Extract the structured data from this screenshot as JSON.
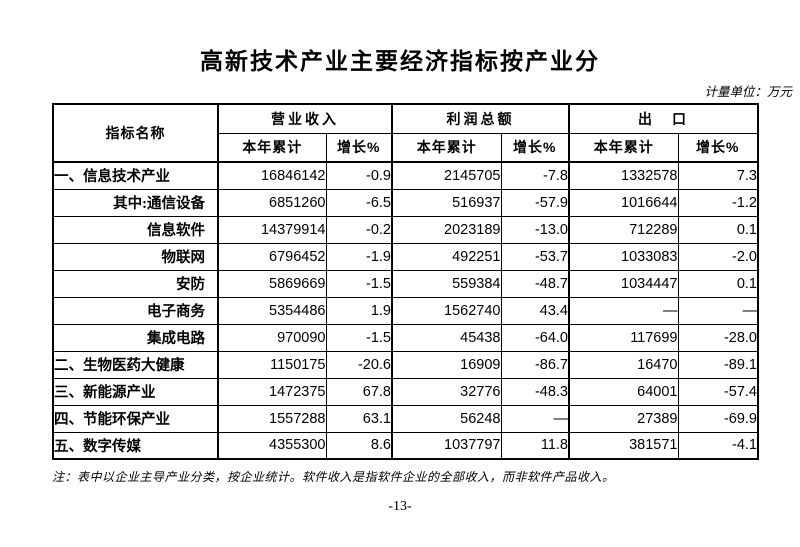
{
  "page": {
    "title": "高新技术产业主要经济指标按产业分",
    "unit_note": "计量单位：万元",
    "footnote": "注：表中以企业主导产业分类，按企业统计。软件收入是指软件企业的全部收入，而非软件产品收入。",
    "page_number": "-13-"
  },
  "table": {
    "header": {
      "indicator": "指标名称",
      "groups": [
        {
          "label": "营业收入",
          "sub": [
            "本年累计",
            "增长%"
          ]
        },
        {
          "label": "利润总额",
          "sub": [
            "本年累计",
            "增长%"
          ]
        },
        {
          "label": "出　口",
          "sub": [
            "本年累计",
            "增长%"
          ]
        }
      ]
    },
    "rows": [
      {
        "name": "一、信息技术产业",
        "indent": false,
        "values": [
          "16846142",
          "-0.9",
          "2145705",
          "-7.8",
          "1332578",
          "7.3"
        ]
      },
      {
        "name": "其中:通信设备",
        "indent": true,
        "values": [
          "6851260",
          "-6.5",
          "516937",
          "-57.9",
          "1016644",
          "-1.2"
        ]
      },
      {
        "name": "信息软件",
        "indent": true,
        "values": [
          "14379914",
          "-0.2",
          "2023189",
          "-13.0",
          "712289",
          "0.1"
        ]
      },
      {
        "name": "物联网",
        "indent": true,
        "values": [
          "6796452",
          "-1.9",
          "492251",
          "-53.7",
          "1033083",
          "-2.0"
        ]
      },
      {
        "name": "安防",
        "indent": true,
        "values": [
          "5869669",
          "-1.5",
          "559384",
          "-48.7",
          "1034447",
          "0.1"
        ]
      },
      {
        "name": "电子商务",
        "indent": true,
        "values": [
          "5354486",
          "1.9",
          "1562740",
          "43.4",
          "—",
          "—"
        ]
      },
      {
        "name": "集成电路",
        "indent": true,
        "values": [
          "970090",
          "-1.5",
          "45438",
          "-64.0",
          "117699",
          "-28.0"
        ]
      },
      {
        "name": "二、生物医药大健康",
        "indent": false,
        "values": [
          "1150175",
          "-20.6",
          "16909",
          "-86.7",
          "16470",
          "-89.1"
        ]
      },
      {
        "name": "三、新能源产业",
        "indent": false,
        "values": [
          "1472375",
          "67.8",
          "32776",
          "-48.3",
          "64001",
          "-57.4"
        ]
      },
      {
        "name": "四、节能环保产业",
        "indent": false,
        "values": [
          "1557288",
          "63.1",
          "56248",
          "—",
          "27389",
          "-69.9"
        ]
      },
      {
        "name": "五、数字传媒",
        "indent": false,
        "values": [
          "4355300",
          "8.6",
          "1037797",
          "11.8",
          "381571",
          "-4.1"
        ]
      }
    ]
  }
}
